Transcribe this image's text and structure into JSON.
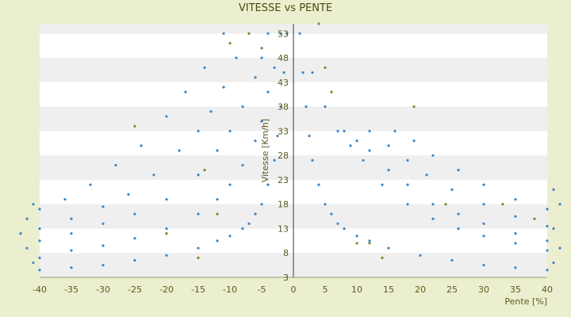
{
  "chart_data": {
    "type": "scatter",
    "title": "VITESSE vs PENTE",
    "xlabel": "Pente [%]",
    "ylabel": "Vitesse [Km/h]",
    "xlim": [
      -40,
      40
    ],
    "ylim": [
      3,
      55
    ],
    "x_ticks": [
      -40,
      -35,
      -30,
      -25,
      -20,
      -15,
      -10,
      -5,
      0,
      5,
      10,
      15,
      20,
      25,
      30,
      35,
      40
    ],
    "y_ticks": [
      3,
      8,
      13,
      18,
      23,
      28,
      33,
      38,
      43,
      48,
      53
    ],
    "grid": "horizontal bands",
    "legend": "none",
    "colors": {
      "series": "#3a86c8",
      "series_alt": "#7a8a2a",
      "band": "#efefef",
      "plot_bg": "#ffffff",
      "page_bg": "#ecefcf"
    },
    "series": [
      {
        "color": "#3a86c8",
        "points": [
          [
            -1,
            53
          ],
          [
            -1.5,
            45
          ],
          [
            -2,
            38
          ],
          [
            -2.5,
            32
          ],
          [
            -3,
            27
          ],
          [
            -4,
            22
          ],
          [
            -5,
            18
          ],
          [
            -6,
            16
          ],
          [
            -7,
            14
          ],
          [
            -8,
            13
          ],
          [
            -10,
            11.5
          ],
          [
            -12,
            10.5
          ],
          [
            -15,
            9
          ],
          [
            -20,
            7.5
          ],
          [
            -25,
            6.5
          ],
          [
            -30,
            5.5
          ],
          [
            -35,
            5
          ],
          [
            -40,
            4.5
          ],
          [
            -2,
            53
          ],
          [
            -3,
            46
          ],
          [
            -4,
            41
          ],
          [
            -5,
            35
          ],
          [
            -6,
            31
          ],
          [
            -8,
            26
          ],
          [
            -10,
            22
          ],
          [
            -12,
            19
          ],
          [
            -15,
            16
          ],
          [
            -20,
            13
          ],
          [
            -25,
            11
          ],
          [
            -30,
            9.5
          ],
          [
            -35,
            8.5
          ],
          [
            -40,
            7
          ],
          [
            -4,
            53
          ],
          [
            -5,
            48
          ],
          [
            -6,
            44
          ],
          [
            -8,
            38
          ],
          [
            -10,
            33
          ],
          [
            -12,
            29
          ],
          [
            -15,
            24
          ],
          [
            -20,
            19
          ],
          [
            -25,
            16
          ],
          [
            -30,
            14
          ],
          [
            -35,
            12
          ],
          [
            -40,
            10.5
          ],
          [
            -7,
            53
          ],
          [
            -9,
            48
          ],
          [
            -11,
            42
          ],
          [
            -13,
            37
          ],
          [
            -15,
            33
          ],
          [
            -18,
            29
          ],
          [
            -22,
            24
          ],
          [
            -26,
            20
          ],
          [
            -30,
            17.5
          ],
          [
            -35,
            15
          ],
          [
            -40,
            13
          ],
          [
            -11,
            53
          ],
          [
            -14,
            46
          ],
          [
            -17,
            41
          ],
          [
            -20,
            36
          ],
          [
            -24,
            30
          ],
          [
            -28,
            26
          ],
          [
            -32,
            22
          ],
          [
            -36,
            19
          ],
          [
            -40,
            17
          ],
          [
            1,
            53
          ],
          [
            1.5,
            45
          ],
          [
            2,
            38
          ],
          [
            2.5,
            32
          ],
          [
            3,
            27
          ],
          [
            4,
            22
          ],
          [
            5,
            18
          ],
          [
            6,
            16
          ],
          [
            7,
            14
          ],
          [
            8,
            13
          ],
          [
            10,
            11.5
          ],
          [
            12,
            10.5
          ],
          [
            15,
            9
          ],
          [
            20,
            7.5
          ],
          [
            25,
            6.5
          ],
          [
            30,
            5.5
          ],
          [
            35,
            5
          ],
          [
            40,
            4.5
          ],
          [
            3,
            45
          ],
          [
            5,
            38
          ],
          [
            7,
            33
          ],
          [
            9,
            30
          ],
          [
            11,
            27
          ],
          [
            14,
            22
          ],
          [
            18,
            18
          ],
          [
            22,
            15
          ],
          [
            26,
            13
          ],
          [
            30,
            11.5
          ],
          [
            35,
            10
          ],
          [
            40,
            8.5
          ],
          [
            8,
            33
          ],
          [
            10,
            31
          ],
          [
            12,
            29
          ],
          [
            15,
            25
          ],
          [
            18,
            22
          ],
          [
            22,
            18
          ],
          [
            26,
            16
          ],
          [
            30,
            14
          ],
          [
            35,
            12
          ],
          [
            40,
            10.5
          ],
          [
            12,
            33
          ],
          [
            15,
            30
          ],
          [
            18,
            27
          ],
          [
            21,
            24
          ],
          [
            25,
            21
          ],
          [
            30,
            18
          ],
          [
            35,
            15.5
          ],
          [
            40,
            13.5
          ],
          [
            16,
            33
          ],
          [
            19,
            31
          ],
          [
            22,
            28
          ],
          [
            26,
            25
          ],
          [
            30,
            22
          ],
          [
            35,
            19
          ],
          [
            40,
            17
          ],
          [
            -41,
            6
          ],
          [
            -42,
            9
          ],
          [
            -43,
            12
          ],
          [
            -42,
            15
          ],
          [
            -41,
            18
          ],
          [
            41,
            6
          ],
          [
            42,
            9
          ],
          [
            41,
            13
          ],
          [
            42,
            18
          ],
          [
            41,
            21
          ]
        ]
      },
      {
        "color": "#7a8a2a",
        "points": [
          [
            -7,
            53
          ],
          [
            -10,
            51
          ],
          [
            -5,
            50
          ],
          [
            -25,
            34
          ],
          [
            -14,
            25
          ],
          [
            -12,
            16
          ],
          [
            -15,
            7
          ],
          [
            -20,
            12
          ],
          [
            4,
            55
          ],
          [
            5,
            46
          ],
          [
            6,
            41
          ],
          [
            10,
            10
          ],
          [
            12,
            10
          ],
          [
            14,
            7
          ],
          [
            19,
            38
          ],
          [
            24,
            18
          ],
          [
            33,
            18
          ],
          [
            38,
            15
          ]
        ]
      }
    ]
  }
}
